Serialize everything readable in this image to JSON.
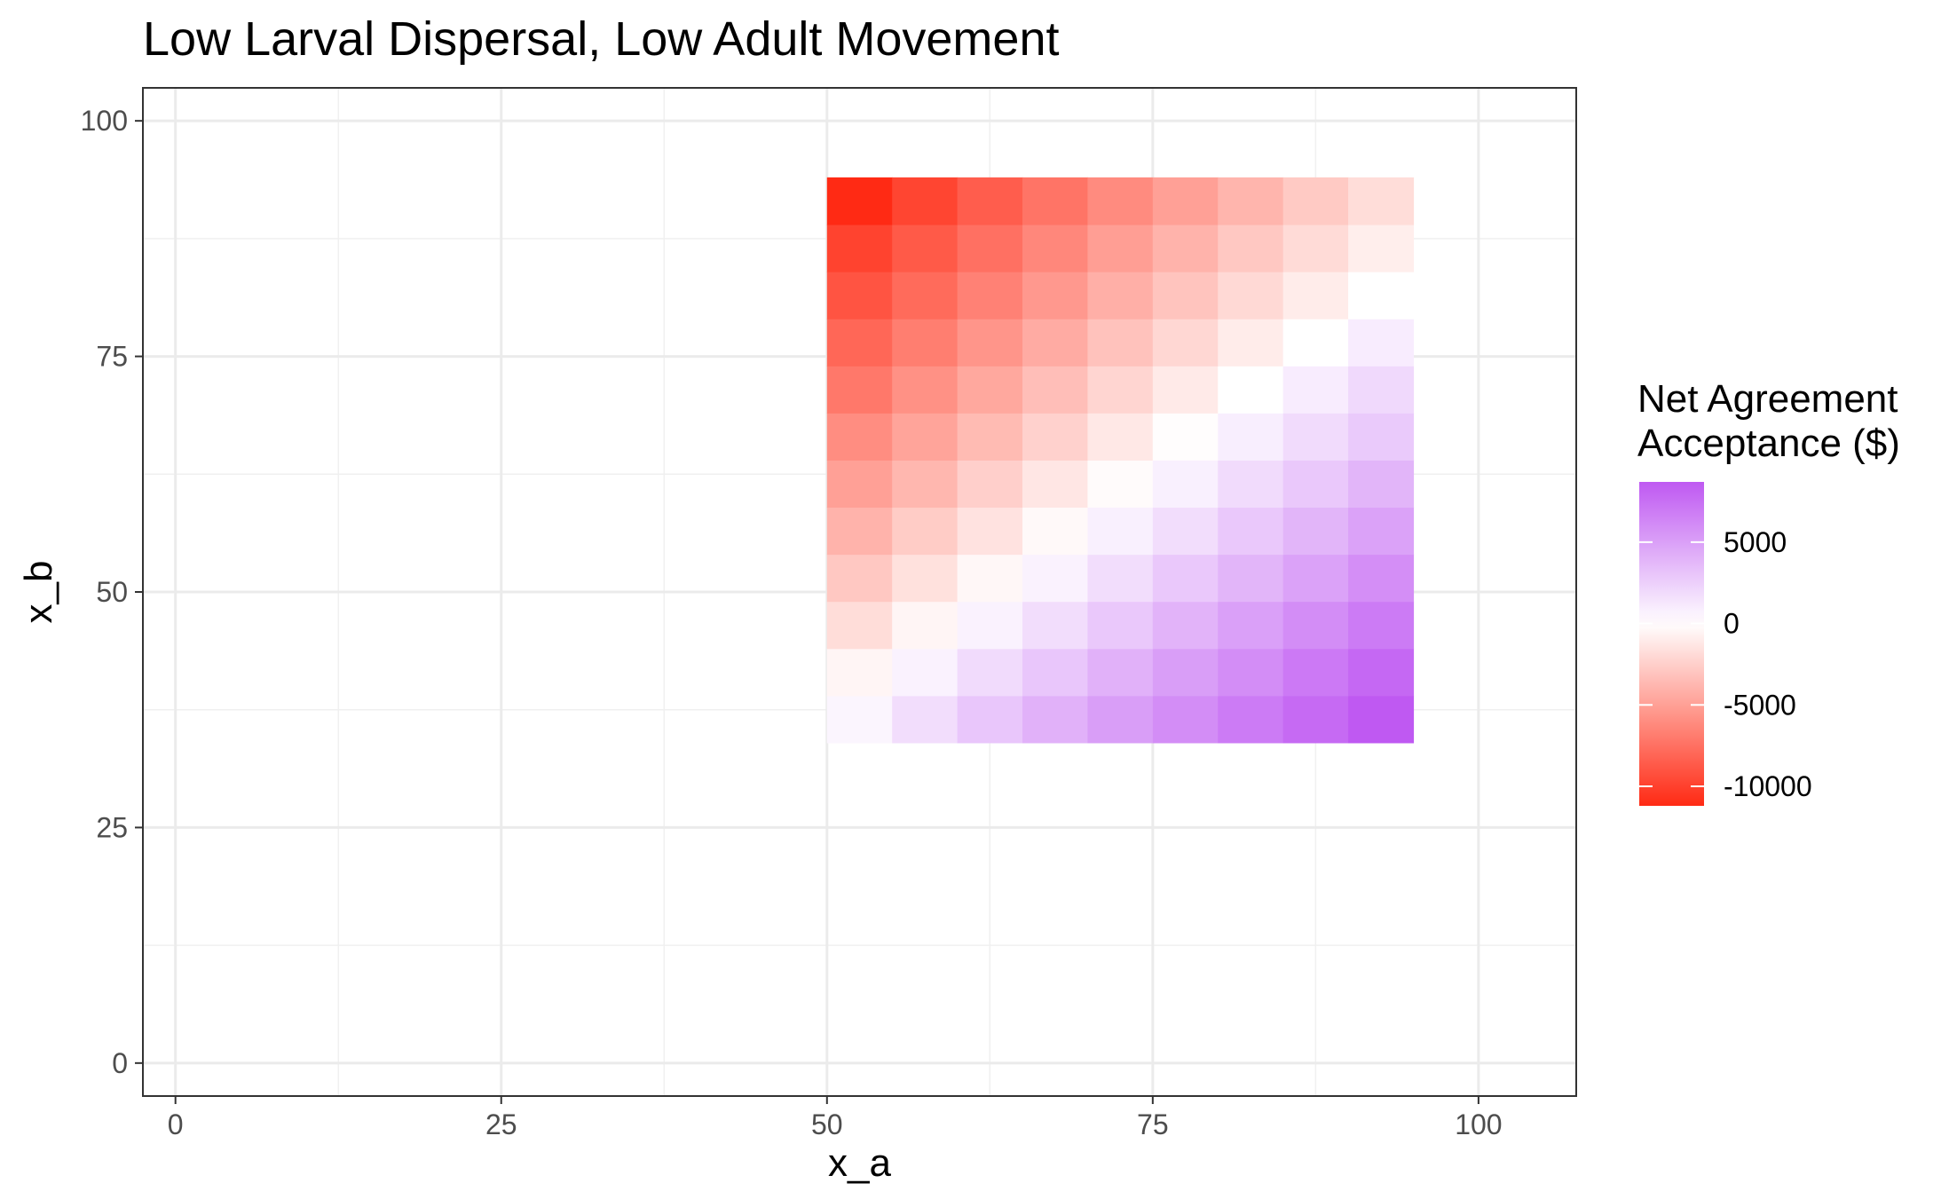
{
  "chart_data": {
    "type": "heatmap",
    "title": "Low Larval Dispersal, Low Adult Movement",
    "xlabel": "x_a",
    "ylabel": "x_b",
    "xlim": [
      -2.5,
      107.5
    ],
    "ylim": [
      -3.5,
      103.5
    ],
    "x_ticks": [
      0,
      25,
      50,
      75,
      100
    ],
    "y_ticks": [
      0,
      25,
      50,
      75,
      100
    ],
    "grid": true,
    "x": [
      52.5,
      57.5,
      62.5,
      67.5,
      72.5,
      77.5,
      82.5,
      87.5,
      92.5
    ],
    "y": [
      36.5,
      41.5,
      46.5,
      51.5,
      56.5,
      61.5,
      66.5,
      71.5,
      76.5,
      81.5,
      86.5,
      91.5
    ],
    "cell_width": 5,
    "cell_height": 5,
    "z": [
      [
        500,
        1800,
        3000,
        4100,
        5100,
        6000,
        6900,
        7800,
        8700
      ],
      [
        -500,
        700,
        1900,
        3000,
        4100,
        5100,
        6000,
        7000,
        7900
      ],
      [
        -1800,
        -500,
        700,
        1800,
        2900,
        4000,
        5000,
        6000,
        6900
      ],
      [
        -2900,
        -1600,
        -400,
        700,
        1800,
        2900,
        3900,
        4900,
        5900
      ],
      [
        -4000,
        -2700,
        -1500,
        -300,
        800,
        1800,
        2900,
        3900,
        4900
      ],
      [
        -5000,
        -3800,
        -2500,
        -1300,
        -200,
        800,
        1900,
        2900,
        3900
      ],
      [
        -6000,
        -4800,
        -3600,
        -2400,
        -1200,
        -100,
        900,
        1900,
        2800
      ],
      [
        -7100,
        -5800,
        -4600,
        -3400,
        -2200,
        -1100,
        0,
        1000,
        2000
      ],
      [
        -8000,
        -6800,
        -5600,
        -4400,
        -3200,
        -2100,
        -1000,
        0,
        1000
      ],
      [
        -9000,
        -7800,
        -6600,
        -5400,
        -4200,
        -3100,
        -2000,
        -1000,
        0
      ],
      [
        -9900,
        -8700,
        -7500,
        -6300,
        -5100,
        -4000,
        -2900,
        -1900,
        -900
      ],
      [
        -11200,
        -9800,
        -8500,
        -7300,
        -6100,
        -5000,
        -3900,
        -2800,
        -1800
      ]
    ],
    "legend": {
      "title_line1": "Net Agreement",
      "title_line2": "Acceptance ($)",
      "position": "right",
      "range": [
        -11200,
        8700
      ],
      "ticks": [
        5000,
        0,
        -5000,
        -10000
      ],
      "tick_labels": [
        "5000",
        "0",
        "-5000",
        "-10000"
      ]
    },
    "colors": {
      "low": "#ff2a14",
      "mid": "#ffffff",
      "high": "#bf59f2"
    }
  }
}
